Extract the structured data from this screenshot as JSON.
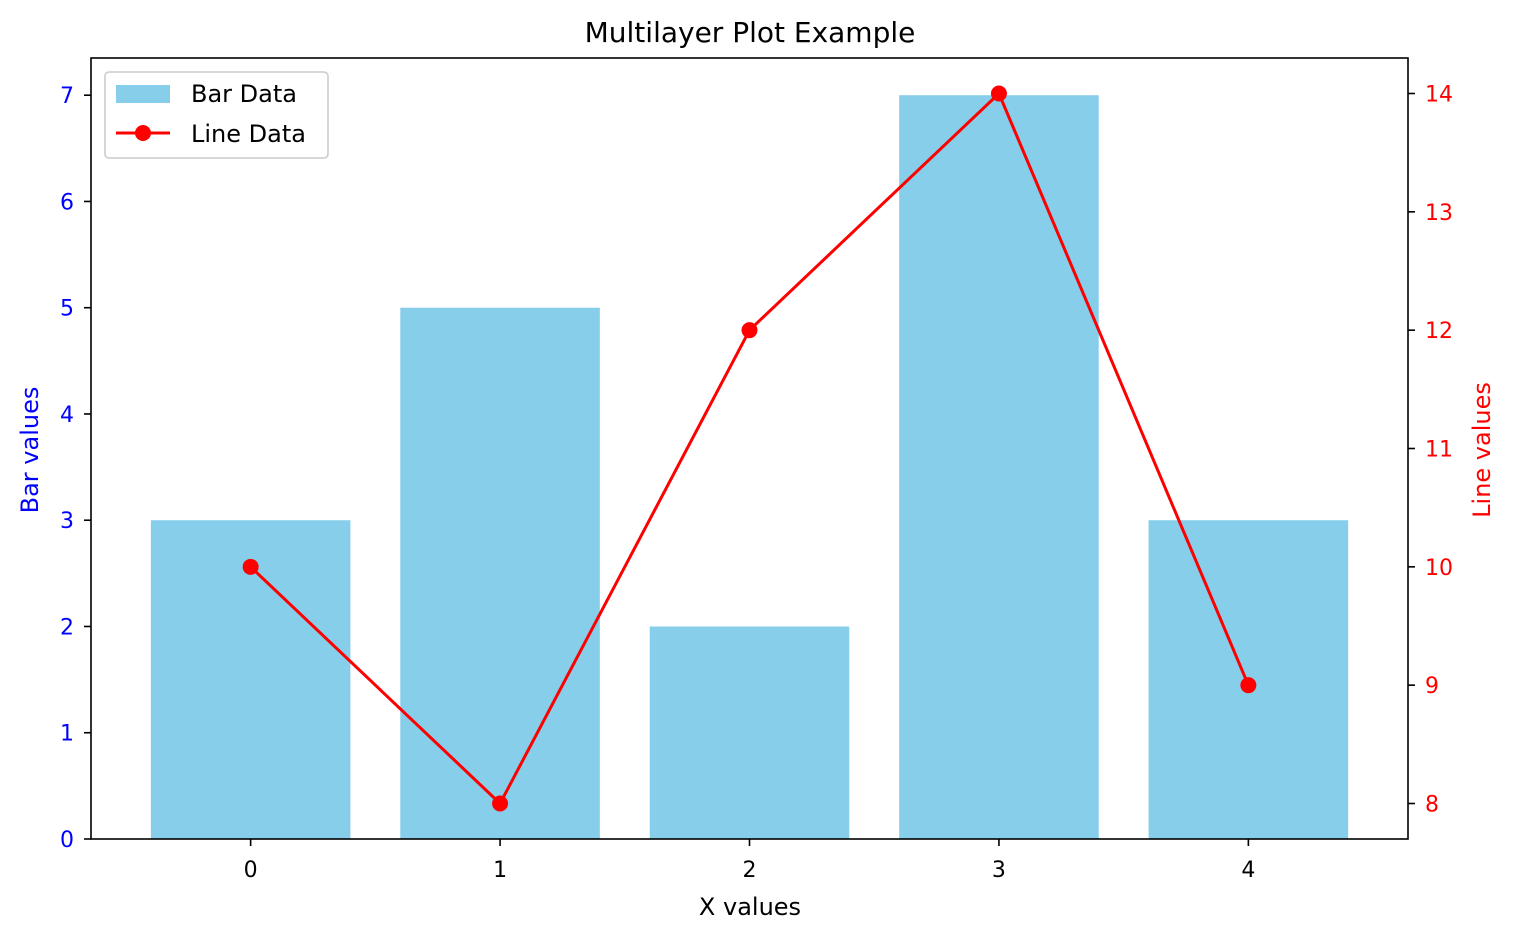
{
  "chart_data": {
    "type": "bar",
    "title": "Multilayer Plot Example",
    "xlabel": "X values",
    "categories": [
      0,
      1,
      2,
      3,
      4
    ],
    "series": [
      {
        "name": "Bar Data",
        "type": "bar",
        "axis": "left",
        "values": [
          3,
          5,
          2,
          7,
          3
        ],
        "color": "#87CEEB"
      },
      {
        "name": "Line Data",
        "type": "line",
        "axis": "right",
        "values": [
          10,
          8,
          12,
          14,
          9
        ],
        "color": "#FF0000"
      }
    ],
    "y_left": {
      "label": "Bar values",
      "range": [
        0,
        7.35
      ],
      "ticks": [
        0,
        1,
        2,
        3,
        4,
        5,
        6,
        7
      ],
      "color": "#0000FF"
    },
    "y_right": {
      "label": "Line values",
      "range": [
        7.7,
        14.3
      ],
      "ticks": [
        8,
        9,
        10,
        11,
        12,
        13,
        14
      ],
      "color": "#FF0000"
    },
    "x_range": [
      -0.64,
      4.64
    ],
    "grid": false,
    "legend_position": "top-left"
  }
}
